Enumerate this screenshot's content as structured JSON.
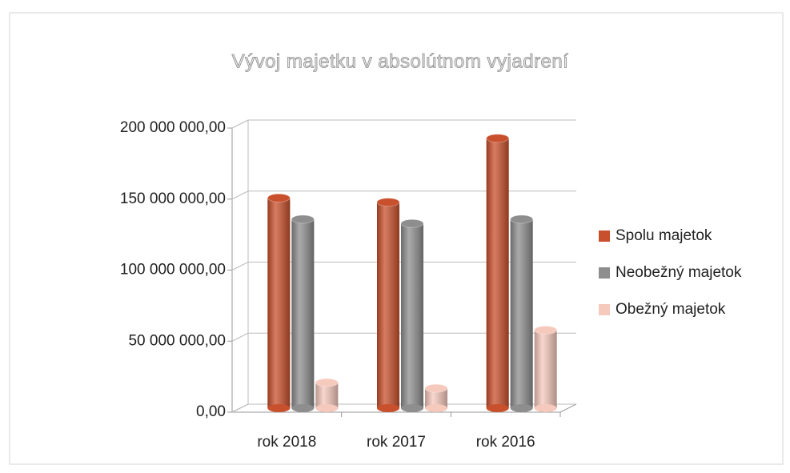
{
  "chart_data": {
    "type": "bar3d",
    "title": "Vývoj majetku v absolútnom vyjadrení",
    "categories": [
      "rok 2018",
      "rok 2017",
      "rok 2016"
    ],
    "series": [
      {
        "name": "Spolu majetok",
        "color": "#c9502c",
        "values": [
          148000000,
          145000000,
          190000000
        ]
      },
      {
        "name": "Neobežný majetok",
        "color": "#8e8e8e",
        "values": [
          133000000,
          130000000,
          133000000
        ]
      },
      {
        "name": "Obežný majetok",
        "color": "#f6c9bd",
        "values": [
          18000000,
          14000000,
          55000000
        ]
      }
    ],
    "ylim": [
      0,
      200000000
    ],
    "yticks": [
      {
        "value": 0,
        "label": "0,00"
      },
      {
        "value": 50000000,
        "label": "50 000 000,00"
      },
      {
        "value": 100000000,
        "label": "100 000 000,00"
      },
      {
        "value": 150000000,
        "label": "150 000 000,00"
      },
      {
        "value": 200000000,
        "label": "200 000 000,00"
      }
    ],
    "grid": true,
    "legend": "right"
  }
}
